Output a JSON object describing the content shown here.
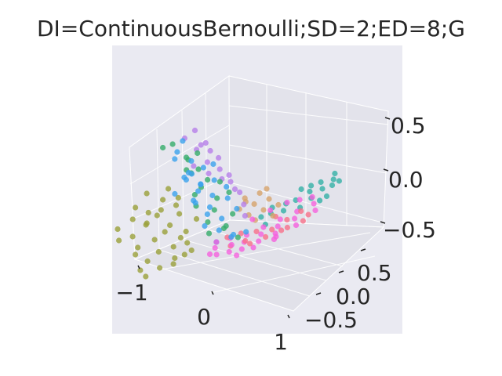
{
  "chart_data": {
    "type": "scatter",
    "projection": "3d",
    "title": "DI=ContinuousBernoulli;SD=2;ED=8;G",
    "xlabel": "",
    "ylabel": "",
    "zlabel": "",
    "x_ticks": [
      "−1",
      "0",
      "1"
    ],
    "y_ticks": [
      "0.5",
      "0.0",
      "−0.5"
    ],
    "z_ticks": [
      "0.5",
      "0.0",
      "−0.5"
    ],
    "grid": true,
    "legend": "none",
    "background": "#eaeaf2",
    "series": [
      {
        "color": "#9aa03a",
        "points": [
          [
            -0.85,
            -0.55,
            -0.3
          ],
          [
            -0.8,
            -0.4,
            -0.2
          ],
          [
            -0.7,
            -0.3,
            -0.25
          ],
          [
            -0.75,
            -0.6,
            -0.4
          ],
          [
            -0.65,
            -0.2,
            -0.15
          ],
          [
            -0.55,
            -0.5,
            -0.45
          ],
          [
            -0.6,
            -0.35,
            -0.1
          ],
          [
            -0.5,
            -0.2,
            -0.3
          ],
          [
            -0.45,
            -0.6,
            -0.5
          ],
          [
            -0.4,
            -0.4,
            -0.35
          ],
          [
            -0.35,
            -0.25,
            -0.2
          ],
          [
            -0.3,
            -0.55,
            -0.55
          ],
          [
            -0.25,
            -0.45,
            -0.45
          ],
          [
            -0.2,
            -0.3,
            -0.4
          ],
          [
            -0.15,
            -0.5,
            -0.6
          ],
          [
            -0.1,
            -0.35,
            -0.5
          ],
          [
            -0.7,
            -0.1,
            0.0
          ],
          [
            -0.6,
            0.0,
            -0.05
          ],
          [
            -0.5,
            -0.05,
            0.05
          ],
          [
            -0.4,
            -0.1,
            -0.1
          ],
          [
            -0.3,
            0.05,
            -0.15
          ],
          [
            -0.2,
            -0.15,
            -0.25
          ],
          [
            -0.1,
            -0.2,
            -0.35
          ],
          [
            -0.05,
            -0.4,
            -0.55
          ],
          [
            0.0,
            -0.3,
            -0.45
          ],
          [
            -0.9,
            -0.3,
            -0.1
          ],
          [
            -0.85,
            -0.2,
            0.05
          ],
          [
            -0.75,
            0.0,
            0.1
          ],
          [
            -0.55,
            -0.4,
            -0.2
          ],
          [
            -0.45,
            -0.3,
            -0.05
          ],
          [
            -0.35,
            -0.6,
            -0.65
          ],
          [
            -0.25,
            -0.6,
            -0.7
          ],
          [
            -0.15,
            -0.25,
            -0.3
          ],
          [
            0.05,
            -0.25,
            -0.4
          ],
          [
            -0.65,
            -0.5,
            -0.35
          ]
        ]
      },
      {
        "color": "#3ba3ec",
        "points": [
          [
            -0.95,
            0.3,
            0.55
          ],
          [
            -0.9,
            0.2,
            0.45
          ],
          [
            -0.85,
            0.35,
            0.35
          ],
          [
            -0.8,
            0.1,
            0.4
          ],
          [
            -0.75,
            0.25,
            0.25
          ],
          [
            -0.7,
            0.4,
            0.3
          ],
          [
            -0.65,
            0.15,
            0.2
          ],
          [
            -0.6,
            0.3,
            0.15
          ],
          [
            -0.55,
            0.05,
            0.25
          ],
          [
            -0.5,
            0.2,
            0.1
          ],
          [
            -0.45,
            0.35,
            0.05
          ],
          [
            -0.4,
            0.1,
            0.0
          ],
          [
            -0.35,
            0.25,
            -0.05
          ],
          [
            -0.3,
            0.0,
            0.05
          ],
          [
            -0.25,
            0.15,
            -0.1
          ],
          [
            -0.2,
            0.3,
            -0.15
          ],
          [
            -0.15,
            0.05,
            -0.2
          ],
          [
            -0.1,
            0.2,
            -0.25
          ],
          [
            -0.05,
            0.35,
            -0.3
          ],
          [
            0.0,
            0.1,
            -0.35
          ],
          [
            0.05,
            0.25,
            -0.3
          ],
          [
            0.1,
            0.4,
            -0.25
          ],
          [
            -0.9,
            0.4,
            0.2
          ],
          [
            -0.8,
            0.45,
            0.1
          ],
          [
            -0.7,
            0.05,
            0.05
          ],
          [
            -0.6,
            0.45,
            0.35
          ],
          [
            -0.5,
            0.4,
            0.2
          ],
          [
            -0.35,
            0.45,
            0.15
          ],
          [
            -0.25,
            0.4,
            0.05
          ],
          [
            -0.15,
            0.45,
            -0.05
          ]
        ]
      },
      {
        "color": "#b67fe9",
        "points": [
          [
            -0.95,
            0.45,
            0.65
          ],
          [
            -0.9,
            0.5,
            0.5
          ],
          [
            -0.85,
            0.25,
            0.6
          ],
          [
            -0.8,
            0.55,
            0.45
          ],
          [
            -0.75,
            0.45,
            0.55
          ],
          [
            -0.7,
            0.3,
            0.5
          ],
          [
            -0.65,
            0.55,
            0.4
          ],
          [
            -0.6,
            0.2,
            0.35
          ],
          [
            -0.55,
            0.5,
            0.3
          ],
          [
            -0.5,
            0.3,
            0.4
          ],
          [
            -0.45,
            0.55,
            0.25
          ],
          [
            -0.4,
            0.25,
            0.3
          ],
          [
            -0.35,
            0.5,
            0.2
          ],
          [
            -0.3,
            0.35,
            0.25
          ],
          [
            -0.25,
            0.55,
            0.1
          ],
          [
            -0.2,
            0.45,
            0.15
          ],
          [
            -0.1,
            0.5,
            0.0
          ],
          [
            0.0,
            0.45,
            -0.1
          ]
        ]
      },
      {
        "color": "#36ad6a",
        "points": [
          [
            -0.95,
            0.05,
            0.5
          ],
          [
            -0.85,
            0.1,
            0.55
          ],
          [
            -0.75,
            0.35,
            0.45
          ],
          [
            -0.7,
            0.2,
            0.4
          ],
          [
            -0.6,
            0.1,
            0.45
          ],
          [
            -0.55,
            0.35,
            0.2
          ],
          [
            -0.5,
            0.1,
            0.3
          ],
          [
            -0.45,
            0.2,
            0.15
          ],
          [
            -0.4,
            0.4,
            0.2
          ],
          [
            -0.35,
            0.05,
            0.1
          ],
          [
            -0.3,
            0.3,
            0.05
          ],
          [
            -0.25,
            0.0,
            0.0
          ],
          [
            -0.2,
            0.2,
            -0.05
          ],
          [
            -0.15,
            0.4,
            -0.1
          ],
          [
            -0.1,
            0.05,
            -0.15
          ],
          [
            -0.05,
            0.25,
            -0.2
          ],
          [
            0.0,
            0.0,
            -0.25
          ],
          [
            0.05,
            0.15,
            -0.2
          ],
          [
            0.1,
            0.3,
            -0.3
          ],
          [
            -0.65,
            0.3,
            0.3
          ],
          [
            -0.45,
            0.0,
            0.35
          ],
          [
            -0.3,
            0.45,
            0.1
          ]
        ]
      },
      {
        "color": "#d6a36c",
        "points": [
          [
            0.05,
            0.4,
            0.1
          ],
          [
            0.1,
            0.55,
            0.15
          ],
          [
            0.15,
            0.45,
            0.05
          ],
          [
            0.2,
            0.6,
            0.1
          ],
          [
            0.25,
            0.5,
            0.0
          ],
          [
            0.3,
            0.65,
            0.05
          ],
          [
            0.35,
            0.55,
            -0.05
          ],
          [
            0.2,
            0.35,
            -0.05
          ],
          [
            0.1,
            0.3,
            0.0
          ],
          [
            0.0,
            0.45,
            0.05
          ],
          [
            0.25,
            0.4,
            -0.1
          ],
          [
            0.15,
            0.6,
            0.2
          ]
        ]
      },
      {
        "color": "#f561dd",
        "points": [
          [
            0.0,
            0.1,
            -0.35
          ],
          [
            0.05,
            0.05,
            -0.4
          ],
          [
            0.1,
            0.2,
            -0.3
          ],
          [
            0.15,
            0.0,
            -0.45
          ],
          [
            0.2,
            0.15,
            -0.35
          ],
          [
            0.25,
            0.3,
            -0.25
          ],
          [
            0.3,
            0.05,
            -0.4
          ],
          [
            0.35,
            0.2,
            -0.3
          ],
          [
            0.4,
            0.4,
            -0.15
          ],
          [
            0.45,
            0.1,
            -0.35
          ],
          [
            0.5,
            0.3,
            -0.2
          ],
          [
            0.55,
            0.5,
            -0.05
          ],
          [
            0.6,
            0.2,
            -0.25
          ],
          [
            0.65,
            0.4,
            -0.1
          ],
          [
            0.7,
            0.6,
            0.05
          ],
          [
            0.75,
            0.3,
            -0.15
          ],
          [
            0.8,
            0.5,
            0.0
          ],
          [
            0.85,
            0.7,
            0.15
          ],
          [
            0.9,
            0.45,
            -0.05
          ],
          [
            0.95,
            0.65,
            0.1
          ],
          [
            0.3,
            0.55,
            0.0
          ],
          [
            0.45,
            0.65,
            0.1
          ],
          [
            0.6,
            0.7,
            0.15
          ],
          [
            0.75,
            0.75,
            0.2
          ],
          [
            0.2,
            0.4,
            -0.1
          ],
          [
            0.5,
            0.0,
            -0.4
          ],
          [
            0.65,
            0.1,
            -0.3
          ],
          [
            0.8,
            0.25,
            -0.2
          ],
          [
            0.9,
            0.2,
            -0.15
          ],
          [
            0.1,
            -0.05,
            -0.45
          ]
        ]
      },
      {
        "color": "#f77189",
        "points": [
          [
            0.05,
            0.2,
            -0.3
          ],
          [
            0.15,
            0.3,
            -0.25
          ],
          [
            0.25,
            0.1,
            -0.35
          ],
          [
            0.35,
            0.35,
            -0.2
          ],
          [
            0.45,
            0.2,
            -0.3
          ],
          [
            0.55,
            0.4,
            -0.15
          ],
          [
            0.65,
            0.25,
            -0.2
          ],
          [
            0.75,
            0.45,
            -0.1
          ],
          [
            0.85,
            0.3,
            -0.1
          ],
          [
            0.95,
            0.5,
            0.0
          ],
          [
            0.4,
            0.55,
            -0.05
          ],
          [
            0.7,
            0.65,
            0.05
          ],
          [
            0.3,
            0.25,
            -0.3
          ],
          [
            0.6,
            0.55,
            -0.05
          ],
          [
            0.9,
            0.6,
            0.05
          ]
        ]
      },
      {
        "color": "#33b0a6",
        "points": [
          [
            0.55,
            0.75,
            0.25
          ],
          [
            0.65,
            0.8,
            0.3
          ],
          [
            0.75,
            0.85,
            0.35
          ],
          [
            0.85,
            0.8,
            0.3
          ],
          [
            0.95,
            0.85,
            0.35
          ],
          [
            1.0,
            0.75,
            0.25
          ],
          [
            0.9,
            0.9,
            0.4
          ],
          [
            0.8,
            0.7,
            0.2
          ],
          [
            0.7,
            0.75,
            0.25
          ],
          [
            0.6,
            0.65,
            0.15
          ],
          [
            0.5,
            0.6,
            0.1
          ],
          [
            0.4,
            0.5,
            0.05
          ],
          [
            0.35,
            0.4,
            -0.05
          ],
          [
            0.45,
            0.45,
            0.0
          ],
          [
            0.95,
            0.7,
            0.2
          ],
          [
            1.0,
            0.9,
            0.4
          ],
          [
            0.85,
            0.95,
            0.45
          ],
          [
            0.6,
            0.5,
            0.05
          ],
          [
            0.75,
            0.6,
            0.1
          ],
          [
            0.5,
            0.35,
            -0.1
          ]
        ]
      }
    ]
  }
}
